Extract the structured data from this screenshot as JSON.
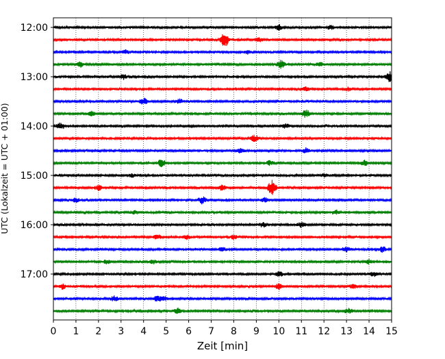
{
  "chart_data": {
    "type": "line",
    "chart_kind": "seismogram helicorder",
    "xlabel": "Zeit  [min]",
    "ylabel": "UTC (Lokalzeit = UTC + 01:00)",
    "xlim": [
      0,
      15
    ],
    "x_ticks": [
      0,
      1,
      2,
      3,
      4,
      5,
      6,
      7,
      8,
      9,
      10,
      11,
      12,
      13,
      14,
      15
    ],
    "grid": "vertical dotted lines at each minute",
    "trace_interval_minutes": 15,
    "y_ticks": [
      "12:00",
      "13:00",
      "14:00",
      "15:00",
      "16:00",
      "17:00"
    ],
    "trace_colors": [
      "#000000",
      "#ff0000",
      "#0000ff",
      "#008000"
    ],
    "traces": [
      {
        "time": "12:00",
        "color": "#000000",
        "events": [
          [
            10,
            0.6
          ],
          [
            12.3,
            0.5
          ]
        ]
      },
      {
        "time": "12:15",
        "color": "#ff0000",
        "events": [
          [
            7.6,
            1.9
          ],
          [
            9.1,
            0.5
          ]
        ]
      },
      {
        "time": "12:30",
        "color": "#0000ff",
        "events": [
          [
            3.2,
            0.4
          ],
          [
            8.6,
            0.4
          ]
        ]
      },
      {
        "time": "12:45",
        "color": "#008000",
        "events": [
          [
            1.2,
            0.5
          ],
          [
            10.1,
            1.0
          ],
          [
            11.8,
            0.5
          ]
        ]
      },
      {
        "time": "13:00",
        "color": "#000000",
        "events": [
          [
            3.1,
            0.6
          ],
          [
            14.9,
            1.3
          ]
        ]
      },
      {
        "time": "13:15",
        "color": "#ff0000",
        "events": [
          [
            11.2,
            0.5
          ],
          [
            13.1,
            0.4
          ]
        ]
      },
      {
        "time": "13:30",
        "color": "#0000ff",
        "events": [
          [
            4.0,
            0.8
          ],
          [
            5.6,
            0.5
          ]
        ]
      },
      {
        "time": "13:45",
        "color": "#008000",
        "events": [
          [
            1.7,
            0.5
          ],
          [
            11.2,
            1.0
          ]
        ]
      },
      {
        "time": "14:00",
        "color": "#000000",
        "events": [
          [
            0.3,
            0.6
          ],
          [
            10.3,
            0.6
          ]
        ]
      },
      {
        "time": "14:15",
        "color": "#ff0000",
        "events": [
          [
            8.9,
            0.7
          ]
        ]
      },
      {
        "time": "14:30",
        "color": "#0000ff",
        "events": [
          [
            8.3,
            0.5
          ],
          [
            11.2,
            0.6
          ]
        ]
      },
      {
        "time": "14:45",
        "color": "#008000",
        "events": [
          [
            4.8,
            0.9
          ],
          [
            9.6,
            0.5
          ],
          [
            13.8,
            0.6
          ]
        ]
      },
      {
        "time": "15:00",
        "color": "#000000",
        "events": [
          [
            3.5,
            0.4
          ],
          [
            12.0,
            0.4
          ]
        ]
      },
      {
        "time": "15:15",
        "color": "#ff0000",
        "events": [
          [
            2.0,
            0.6
          ],
          [
            7.5,
            0.6
          ],
          [
            9.7,
            1.8
          ]
        ]
      },
      {
        "time": "15:30",
        "color": "#0000ff",
        "events": [
          [
            1.0,
            0.5
          ],
          [
            6.6,
            0.9
          ],
          [
            9.4,
            0.6
          ]
        ]
      },
      {
        "time": "15:45",
        "color": "#008000",
        "events": [
          [
            3.6,
            0.4
          ],
          [
            12.5,
            0.4
          ]
        ]
      },
      {
        "time": "16:00",
        "color": "#000000",
        "events": [
          [
            9.3,
            0.6
          ],
          [
            11.0,
            0.6
          ]
        ]
      },
      {
        "time": "16:15",
        "color": "#ff0000",
        "events": [
          [
            4.6,
            0.6
          ],
          [
            5.9,
            0.5
          ],
          [
            8.0,
            0.5
          ]
        ]
      },
      {
        "time": "16:30",
        "color": "#0000ff",
        "events": [
          [
            7.5,
            0.5
          ],
          [
            13.0,
            0.6
          ],
          [
            14.6,
            0.7
          ]
        ]
      },
      {
        "time": "16:45",
        "color": "#008000",
        "events": [
          [
            2.4,
            0.5
          ],
          [
            4.4,
            0.5
          ],
          [
            14.0,
            0.5
          ]
        ]
      },
      {
        "time": "17:00",
        "color": "#000000",
        "events": [
          [
            10.0,
            0.6
          ],
          [
            14.2,
            0.6
          ]
        ]
      },
      {
        "time": "17:15",
        "color": "#ff0000",
        "events": [
          [
            0.4,
            0.6
          ],
          [
            10.0,
            0.6
          ],
          [
            13.3,
            0.5
          ]
        ]
      },
      {
        "time": "17:30",
        "color": "#0000ff",
        "events": [
          [
            2.7,
            0.6
          ],
          [
            4.6,
            0.6
          ],
          [
            4.9,
            0.5
          ]
        ]
      },
      {
        "time": "17:45",
        "color": "#008000",
        "events": [
          [
            5.5,
            0.6
          ],
          [
            13.1,
            0.6
          ]
        ]
      }
    ]
  }
}
